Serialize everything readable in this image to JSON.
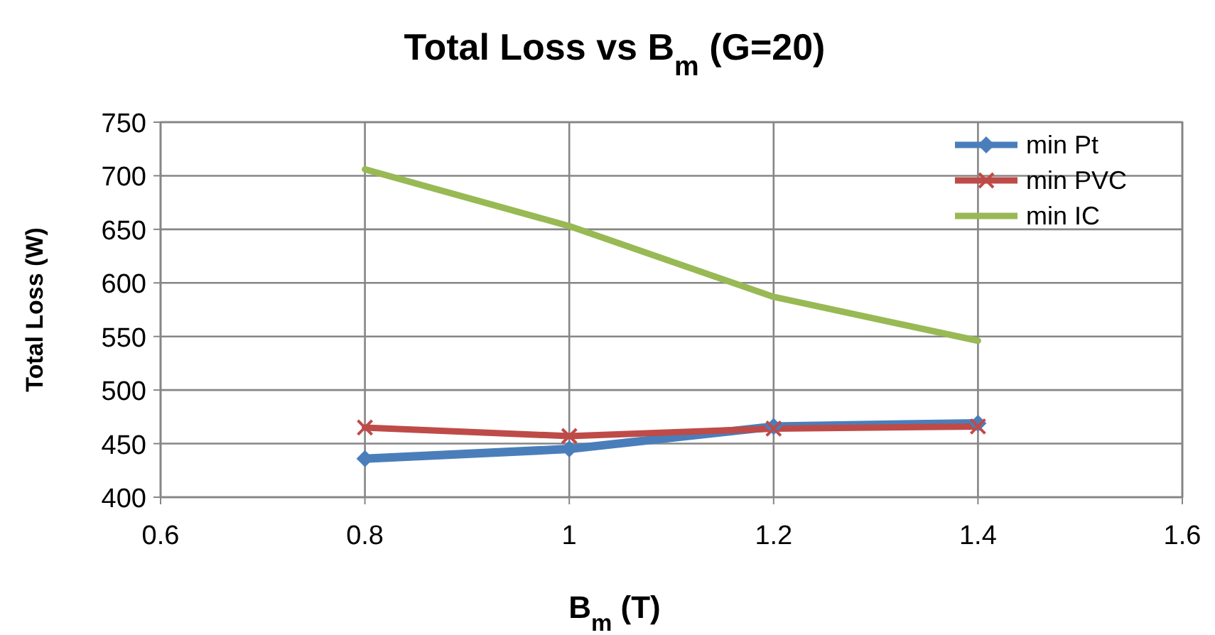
{
  "chart_data": {
    "type": "line",
    "title": "Total Loss  vs B$_{m}$ (G=20)",
    "xlabel": "B$_{m}$ (T)",
    "ylabel": "Total Loss (W)",
    "x": [
      0.8,
      1,
      1.2,
      1.4
    ],
    "series": [
      {
        "name": "min Pt",
        "color": "#4a7ebb",
        "values": [
          436,
          445,
          466,
          469
        ],
        "marker": "diamond"
      },
      {
        "name": "min PVC",
        "color": "#be4b48",
        "values": [
          465,
          457,
          464,
          466
        ],
        "marker": "cross"
      },
      {
        "name": "min IC",
        "color": "#98b954",
        "values": [
          706,
          653,
          587,
          546
        ],
        "marker": "none"
      }
    ],
    "xlim": [
      0.6,
      1.6
    ],
    "xticks": [
      0.6,
      0.8,
      1,
      1.2,
      1.4,
      1.6
    ],
    "ylim": [
      400,
      750
    ],
    "yticks": [
      400,
      450,
      500,
      550,
      600,
      650,
      700,
      750
    ],
    "grid": true,
    "legend": "top right",
    "line_style": "solid"
  }
}
